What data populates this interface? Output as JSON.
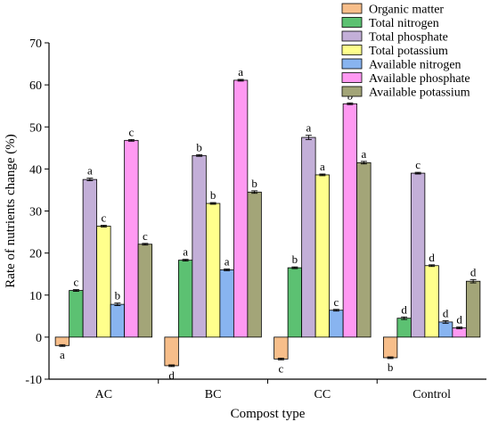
{
  "chart_data": {
    "type": "bar",
    "xlabel": "Compost type",
    "ylabel": "Rate of nutrients change (%)",
    "ylim": [
      -10,
      70
    ],
    "yticks": [
      -10,
      0,
      10,
      20,
      30,
      40,
      50,
      60,
      70
    ],
    "categories": [
      "AC",
      "BC",
      "CC",
      "Control"
    ],
    "legend_position": "top-right",
    "series": [
      {
        "name": "Organic matter",
        "color": "#F7BE8A",
        "values": [
          -2.0,
          -6.8,
          -5.2,
          -4.9
        ],
        "errors": [
          0.2,
          0.2,
          0.2,
          0.2
        ],
        "labels": [
          "a",
          "d",
          "c",
          "b"
        ]
      },
      {
        "name": "Total nitrogen",
        "color": "#5CC172",
        "values": [
          11.1,
          18.3,
          16.5,
          4.5
        ],
        "errors": [
          0.2,
          0.2,
          0.2,
          0.3
        ],
        "labels": [
          "c",
          "a",
          "b",
          "d"
        ]
      },
      {
        "name": "Total phosphate",
        "color": "#C3AFD8",
        "values": [
          37.5,
          43.2,
          47.5,
          39.0
        ],
        "errors": [
          0.3,
          0.2,
          0.5,
          0.2
        ],
        "labels": [
          "a",
          "b",
          "a",
          "c"
        ]
      },
      {
        "name": "Total potassium",
        "color": "#FFFF8C",
        "values": [
          26.4,
          31.8,
          38.6,
          17.0
        ],
        "errors": [
          0.2,
          0.2,
          0.2,
          0.2
        ],
        "labels": [
          "c",
          "b",
          "a",
          "d"
        ]
      },
      {
        "name": "Available nitrogen",
        "color": "#88B4F0",
        "values": [
          7.8,
          16.0,
          6.4,
          3.6
        ],
        "errors": [
          0.3,
          0.2,
          0.2,
          0.3
        ],
        "labels": [
          "b",
          "a",
          "c",
          "d"
        ]
      },
      {
        "name": "Available phosphate",
        "color": "#FF99F2",
        "values": [
          46.8,
          61.1,
          55.5,
          2.2
        ],
        "errors": [
          0.2,
          0.2,
          0.2,
          0.2
        ],
        "labels": [
          "c",
          "a",
          "b",
          "d"
        ]
      },
      {
        "name": "Available potassium",
        "color": "#A3A578",
        "values": [
          22.1,
          34.5,
          41.5,
          13.3
        ],
        "errors": [
          0.2,
          0.3,
          0.3,
          0.4
        ],
        "labels": [
          "c",
          "b",
          "a",
          "d"
        ]
      }
    ]
  }
}
